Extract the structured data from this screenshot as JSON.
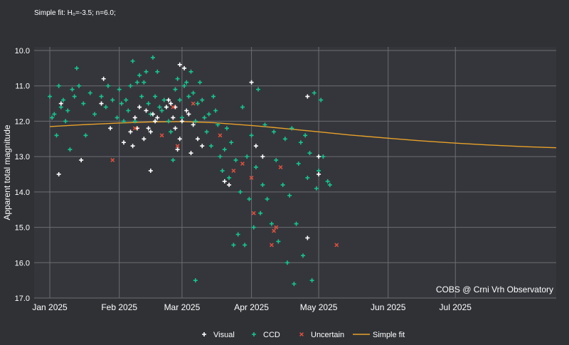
{
  "chart_data": {
    "type": "scatter",
    "subtitle": "Simple fit: H₀=-3.5; n=6.0;",
    "title": "",
    "xlabel": "",
    "ylabel": "Apparent total magnitude",
    "y_inverted": true,
    "ylim": [
      17.0,
      9.9
    ],
    "yticks": [
      "10.0",
      "11.0",
      "12.0",
      "13.0",
      "14.0",
      "15.0",
      "16.0",
      "17.0"
    ],
    "xlim": [
      "2024-12-25",
      "2025-08-15"
    ],
    "xticks": [
      {
        "label": "Jan 2025",
        "date": "2025-01-01"
      },
      {
        "label": "Feb 2025",
        "date": "2025-02-01"
      },
      {
        "label": "Mar 2025",
        "date": "2025-03-01"
      },
      {
        "label": "Apr 2025",
        "date": "2025-04-01"
      },
      {
        "label": "May 2025",
        "date": "2025-05-01"
      },
      {
        "label": "Jun 2025",
        "date": "2025-06-01"
      },
      {
        "label": "Jul 2025",
        "date": "2025-07-01"
      }
    ],
    "grid": true,
    "legend_position": "bottom",
    "watermark": "COBS @ Crni Vrh Observatory",
    "colors": {
      "background": "#2f3135",
      "plot_background": "#34363b",
      "grid": "#6b6d72",
      "text": "#ffffff",
      "visual": "#ffffff",
      "ccd": "#17c48f",
      "uncertain": "#e0503e",
      "fit": "#e9a12a"
    },
    "series": [
      {
        "name": "Visual",
        "marker": "plus",
        "points": [
          {
            "x": "2025-01-06",
            "y": 11.5
          },
          {
            "x": "2025-01-05",
            "y": 13.5
          },
          {
            "x": "2025-01-15",
            "y": 13.1
          },
          {
            "x": "2025-01-24",
            "y": 11.5
          },
          {
            "x": "2025-01-25",
            "y": 10.8
          },
          {
            "x": "2025-01-28",
            "y": 12.2
          },
          {
            "x": "2025-02-03",
            "y": 12.6
          },
          {
            "x": "2025-02-06",
            "y": 12.3
          },
          {
            "x": "2025-02-07",
            "y": 12.7
          },
          {
            "x": "2025-02-08",
            "y": 11.9
          },
          {
            "x": "2025-02-09",
            "y": 12.2
          },
          {
            "x": "2025-02-10",
            "y": 11.6
          },
          {
            "x": "2025-02-12",
            "y": 12.5
          },
          {
            "x": "2025-02-13",
            "y": 11.7
          },
          {
            "x": "2025-02-14",
            "y": 12.2
          },
          {
            "x": "2025-02-15",
            "y": 12.3
          },
          {
            "x": "2025-02-15",
            "y": 13.4
          },
          {
            "x": "2025-02-16",
            "y": 11.8
          },
          {
            "x": "2025-02-17",
            "y": 12.0
          },
          {
            "x": "2025-02-18",
            "y": 11.9
          },
          {
            "x": "2025-02-22",
            "y": 11.6
          },
          {
            "x": "2025-02-23",
            "y": 11.4
          },
          {
            "x": "2025-02-24",
            "y": 11.5
          },
          {
            "x": "2025-02-25",
            "y": 11.9
          },
          {
            "x": "2025-02-26",
            "y": 12.2
          },
          {
            "x": "2025-02-26",
            "y": 11.6
          },
          {
            "x": "2025-02-27",
            "y": 12.8
          },
          {
            "x": "2025-02-28",
            "y": 10.4
          },
          {
            "x": "2025-02-28",
            "y": 12.5
          },
          {
            "x": "2025-03-01",
            "y": 12.0
          },
          {
            "x": "2025-03-03",
            "y": 11.7
          },
          {
            "x": "2025-03-04",
            "y": 11.8
          },
          {
            "x": "2025-03-05",
            "y": 12.9
          },
          {
            "x": "2025-03-06",
            "y": 12.1
          },
          {
            "x": "2025-03-08",
            "y": 12.5
          },
          {
            "x": "2025-03-02",
            "y": 10.5
          },
          {
            "x": "2025-03-10",
            "y": 12.7
          },
          {
            "x": "2025-03-20",
            "y": 13.7
          },
          {
            "x": "2025-03-22",
            "y": 13.8
          },
          {
            "x": "2025-04-01",
            "y": 10.9
          },
          {
            "x": "2025-04-03",
            "y": 12.7
          },
          {
            "x": "2025-04-06",
            "y": 13.0
          },
          {
            "x": "2025-04-26",
            "y": 11.3
          },
          {
            "x": "2025-04-26",
            "y": 15.3
          },
          {
            "x": "2025-05-01",
            "y": 13.5
          },
          {
            "x": "2025-05-01",
            "y": 13.0
          }
        ]
      },
      {
        "name": "CCD",
        "marker": "plus",
        "points": [
          {
            "x": "2025-01-01",
            "y": 11.3
          },
          {
            "x": "2025-01-02",
            "y": 11.9
          },
          {
            "x": "2025-01-03",
            "y": 11.8
          },
          {
            "x": "2025-01-04",
            "y": 12.4
          },
          {
            "x": "2025-01-05",
            "y": 11.0
          },
          {
            "x": "2025-01-06",
            "y": 11.6
          },
          {
            "x": "2025-01-07",
            "y": 11.4
          },
          {
            "x": "2025-01-08",
            "y": 12.0
          },
          {
            "x": "2025-01-09",
            "y": 11.7
          },
          {
            "x": "2025-01-10",
            "y": 12.8
          },
          {
            "x": "2025-01-11",
            "y": 11.1
          },
          {
            "x": "2025-01-12",
            "y": 11.3
          },
          {
            "x": "2025-01-13",
            "y": 10.5
          },
          {
            "x": "2025-01-14",
            "y": 11.0
          },
          {
            "x": "2025-01-16",
            "y": 11.5
          },
          {
            "x": "2025-01-17",
            "y": 12.4
          },
          {
            "x": "2025-01-19",
            "y": 11.2
          },
          {
            "x": "2025-01-21",
            "y": 11.8
          },
          {
            "x": "2025-01-24",
            "y": 11.3
          },
          {
            "x": "2025-01-26",
            "y": 11.6
          },
          {
            "x": "2025-01-27",
            "y": 11.0
          },
          {
            "x": "2025-01-29",
            "y": 11.4
          },
          {
            "x": "2025-01-31",
            "y": 11.9
          },
          {
            "x": "2025-02-01",
            "y": 11.1
          },
          {
            "x": "2025-02-02",
            "y": 11.5
          },
          {
            "x": "2025-02-03",
            "y": 12.0
          },
          {
            "x": "2025-02-04",
            "y": 11.4
          },
          {
            "x": "2025-02-05",
            "y": 11.7
          },
          {
            "x": "2025-02-06",
            "y": 11.0
          },
          {
            "x": "2025-02-07",
            "y": 10.3
          },
          {
            "x": "2025-02-08",
            "y": 12.0
          },
          {
            "x": "2025-02-09",
            "y": 10.9
          },
          {
            "x": "2025-02-10",
            "y": 10.7
          },
          {
            "x": "2025-02-11",
            "y": 11.3
          },
          {
            "x": "2025-02-12",
            "y": 10.9
          },
          {
            "x": "2025-02-13",
            "y": 10.6
          },
          {
            "x": "2025-02-14",
            "y": 11.5
          },
          {
            "x": "2025-02-15",
            "y": 11.8
          },
          {
            "x": "2025-02-16",
            "y": 10.2
          },
          {
            "x": "2025-02-17",
            "y": 11.3
          },
          {
            "x": "2025-02-18",
            "y": 10.6
          },
          {
            "x": "2025-02-19",
            "y": 11.6
          },
          {
            "x": "2025-02-20",
            "y": 11.7
          },
          {
            "x": "2025-02-21",
            "y": 11.4
          },
          {
            "x": "2025-02-22",
            "y": 11.6
          },
          {
            "x": "2025-02-23",
            "y": 12.0
          },
          {
            "x": "2025-02-24",
            "y": 12.3
          },
          {
            "x": "2025-02-25",
            "y": 13.1
          },
          {
            "x": "2025-02-26",
            "y": 11.1
          },
          {
            "x": "2025-02-27",
            "y": 10.8
          },
          {
            "x": "2025-02-28",
            "y": 11.4
          },
          {
            "x": "2025-03-01",
            "y": 11.9
          },
          {
            "x": "2025-03-02",
            "y": 11.0
          },
          {
            "x": "2025-03-03",
            "y": 10.9
          },
          {
            "x": "2025-03-04",
            "y": 11.3
          },
          {
            "x": "2025-03-05",
            "y": 10.6
          },
          {
            "x": "2025-03-06",
            "y": 11.2
          },
          {
            "x": "2025-03-07",
            "y": 12.0
          },
          {
            "x": "2025-03-08",
            "y": 11.5
          },
          {
            "x": "2025-03-09",
            "y": 10.9
          },
          {
            "x": "2025-03-10",
            "y": 11.4
          },
          {
            "x": "2025-03-11",
            "y": 11.9
          },
          {
            "x": "2025-03-12",
            "y": 12.3
          },
          {
            "x": "2025-03-13",
            "y": 11.8
          },
          {
            "x": "2025-03-14",
            "y": 12.7
          },
          {
            "x": "2025-03-15",
            "y": 11.3
          },
          {
            "x": "2025-03-16",
            "y": 11.7
          },
          {
            "x": "2025-03-17",
            "y": 12.1
          },
          {
            "x": "2025-03-18",
            "y": 13.0
          },
          {
            "x": "2025-03-19",
            "y": 13.4
          },
          {
            "x": "2025-03-20",
            "y": 12.8
          },
          {
            "x": "2025-03-21",
            "y": 12.2
          },
          {
            "x": "2025-03-22",
            "y": 13.6
          },
          {
            "x": "2025-03-23",
            "y": 12.6
          },
          {
            "x": "2025-03-24",
            "y": 15.5
          },
          {
            "x": "2025-03-25",
            "y": 13.1
          },
          {
            "x": "2025-03-26",
            "y": 15.2
          },
          {
            "x": "2025-03-27",
            "y": 14.0
          },
          {
            "x": "2025-03-28",
            "y": 11.6
          },
          {
            "x": "2025-03-29",
            "y": 15.5
          },
          {
            "x": "2025-03-30",
            "y": 13.0
          },
          {
            "x": "2025-03-31",
            "y": 14.2
          },
          {
            "x": "2025-04-01",
            "y": 12.4
          },
          {
            "x": "2025-04-02",
            "y": 15.0
          },
          {
            "x": "2025-04-03",
            "y": 13.3
          },
          {
            "x": "2025-04-04",
            "y": 11.1
          },
          {
            "x": "2025-04-05",
            "y": 14.6
          },
          {
            "x": "2025-04-06",
            "y": 13.8
          },
          {
            "x": "2025-04-07",
            "y": 12.1
          },
          {
            "x": "2025-04-08",
            "y": 14.2
          },
          {
            "x": "2025-04-10",
            "y": 14.9
          },
          {
            "x": "2025-04-11",
            "y": 12.3
          },
          {
            "x": "2025-04-12",
            "y": 13.1
          },
          {
            "x": "2025-04-13",
            "y": 15.4
          },
          {
            "x": "2025-04-15",
            "y": 13.8
          },
          {
            "x": "2025-04-16",
            "y": 12.5
          },
          {
            "x": "2025-04-17",
            "y": 16.0
          },
          {
            "x": "2025-04-18",
            "y": 14.1
          },
          {
            "x": "2025-04-19",
            "y": 12.2
          },
          {
            "x": "2025-04-20",
            "y": 16.6
          },
          {
            "x": "2025-04-21",
            "y": 14.9
          },
          {
            "x": "2025-04-22",
            "y": 13.2
          },
          {
            "x": "2025-04-23",
            "y": 12.6
          },
          {
            "x": "2025-04-24",
            "y": 15.8
          },
          {
            "x": "2025-04-25",
            "y": 12.4
          },
          {
            "x": "2025-04-26",
            "y": 13.6
          },
          {
            "x": "2025-04-27",
            "y": 12.9
          },
          {
            "x": "2025-04-28",
            "y": 16.5
          },
          {
            "x": "2025-04-29",
            "y": 11.2
          },
          {
            "x": "2025-04-30",
            "y": 13.9
          },
          {
            "x": "2025-05-01",
            "y": 13.4
          },
          {
            "x": "2025-05-02",
            "y": 11.4
          },
          {
            "x": "2025-05-03",
            "y": 13.0
          },
          {
            "x": "2025-05-05",
            "y": 13.7
          },
          {
            "x": "2025-05-06",
            "y": 13.8
          },
          {
            "x": "2025-03-07",
            "y": 16.5
          }
        ]
      },
      {
        "name": "Uncertain",
        "marker": "cross",
        "points": [
          {
            "x": "2025-01-29",
            "y": 13.1
          },
          {
            "x": "2025-02-08",
            "y": 12.2
          },
          {
            "x": "2025-02-20",
            "y": 12.4
          },
          {
            "x": "2025-02-25",
            "y": 11.6
          },
          {
            "x": "2025-03-06",
            "y": 11.5
          },
          {
            "x": "2025-02-27",
            "y": 12.7
          },
          {
            "x": "2025-03-18",
            "y": 12.4
          },
          {
            "x": "2025-03-24",
            "y": 13.4
          },
          {
            "x": "2025-03-28",
            "y": 13.2
          },
          {
            "x": "2025-04-01",
            "y": 13.6
          },
          {
            "x": "2025-04-02",
            "y": 14.6
          },
          {
            "x": "2025-04-10",
            "y": 15.5
          },
          {
            "x": "2025-04-11",
            "y": 15.1
          },
          {
            "x": "2025-04-12",
            "y": 15.0
          },
          {
            "x": "2025-04-14",
            "y": 13.3
          },
          {
            "x": "2025-05-09",
            "y": 15.5
          }
        ]
      },
      {
        "name": "Simple fit",
        "marker": "line",
        "points": [
          {
            "x": "2025-01-01",
            "y": 12.15
          },
          {
            "x": "2025-01-15",
            "y": 12.1
          },
          {
            "x": "2025-02-01",
            "y": 12.05
          },
          {
            "x": "2025-02-15",
            "y": 12.02
          },
          {
            "x": "2025-03-01",
            "y": 12.01
          },
          {
            "x": "2025-03-15",
            "y": 12.04
          },
          {
            "x": "2025-04-01",
            "y": 12.12
          },
          {
            "x": "2025-04-15",
            "y": 12.2
          },
          {
            "x": "2025-05-01",
            "y": 12.3
          },
          {
            "x": "2025-05-15",
            "y": 12.39
          },
          {
            "x": "2025-06-01",
            "y": 12.48
          },
          {
            "x": "2025-06-15",
            "y": 12.55
          },
          {
            "x": "2025-07-01",
            "y": 12.62
          },
          {
            "x": "2025-07-15",
            "y": 12.67
          },
          {
            "x": "2025-08-01",
            "y": 12.72
          },
          {
            "x": "2025-08-15",
            "y": 12.75
          }
        ]
      }
    ]
  }
}
